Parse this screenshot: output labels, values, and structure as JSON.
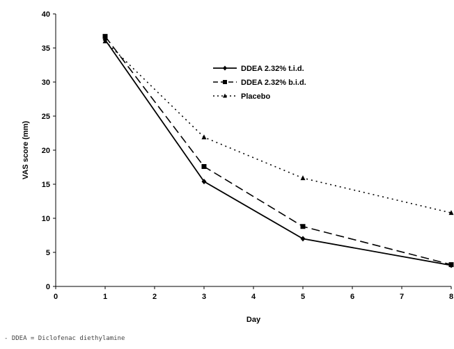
{
  "chart_data": {
    "type": "line",
    "xlabel": "Day",
    "ylabel": "VAS score (mm)",
    "xlim": [
      0,
      8
    ],
    "ylim": [
      0,
      40
    ],
    "x_ticks": [
      "0",
      "1",
      "2",
      "3",
      "4",
      "5",
      "6",
      "7",
      "8"
    ],
    "y_ticks": [
      "0",
      "5",
      "10",
      "15",
      "20",
      "25",
      "30",
      "35",
      "40"
    ],
    "grid": false,
    "legend_position": "top-center",
    "series": [
      {
        "name": "DDEA 2.32% t.i.d.",
        "marker": "diamond",
        "line_style": "solid",
        "color": "#000000",
        "x": [
          1,
          3,
          5,
          8
        ],
        "y": [
          36.2,
          15.4,
          7.0,
          3.1
        ]
      },
      {
        "name": "DDEA 2.32% b.i.d.",
        "marker": "square",
        "line_style": "dashed",
        "color": "#000000",
        "x": [
          1,
          3,
          5,
          8
        ],
        "y": [
          36.7,
          17.6,
          8.8,
          3.2
        ]
      },
      {
        "name": "Placebo",
        "marker": "triangle",
        "line_style": "dotted",
        "color": "#000000",
        "x": [
          1,
          3,
          5,
          8
        ],
        "y": [
          36.0,
          21.9,
          15.9,
          10.8
        ]
      }
    ]
  },
  "footnote": "- DDEA = Diclofenac diethylamine"
}
